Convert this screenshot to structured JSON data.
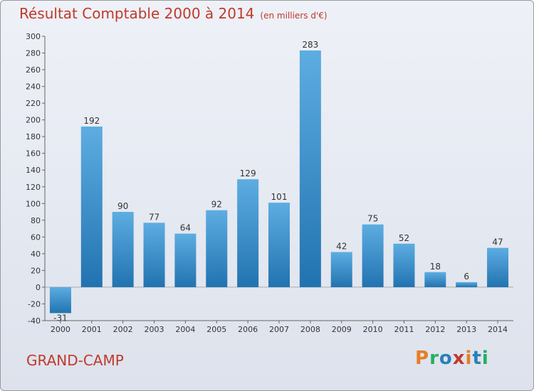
{
  "title": "Résultat Comptable 2000 à 2014",
  "unit": "(en milliers d'€)",
  "commune": "GRAND-CAMP",
  "brand": {
    "text": "Proxiti",
    "letters": [
      "P",
      "r",
      "o",
      "x",
      "i",
      "t",
      "i"
    ],
    "colors": [
      "#e67e22",
      "#27ae60",
      "#2980b9",
      "#c0392b",
      "#e67e22",
      "#2980b9",
      "#27ae60"
    ]
  },
  "colors": {
    "title": "#c0392b",
    "bar_light": "#5dade2",
    "bar_dark": "#2173b0"
  },
  "chart_data": {
    "type": "bar",
    "categories": [
      "2000",
      "2001",
      "2002",
      "2003",
      "2004",
      "2005",
      "2006",
      "2007",
      "2008",
      "2009",
      "2010",
      "2011",
      "2012",
      "2013",
      "2014"
    ],
    "values": [
      -31,
      192,
      90,
      77,
      64,
      92,
      129,
      101,
      283,
      42,
      75,
      52,
      18,
      6,
      47
    ],
    "ylim": [
      -40,
      300
    ],
    "yticks": [
      -40,
      -20,
      0,
      20,
      40,
      60,
      80,
      100,
      120,
      140,
      160,
      180,
      200,
      220,
      240,
      260,
      280,
      300
    ],
    "grid": false,
    "xlabel": "",
    "ylabel": ""
  }
}
